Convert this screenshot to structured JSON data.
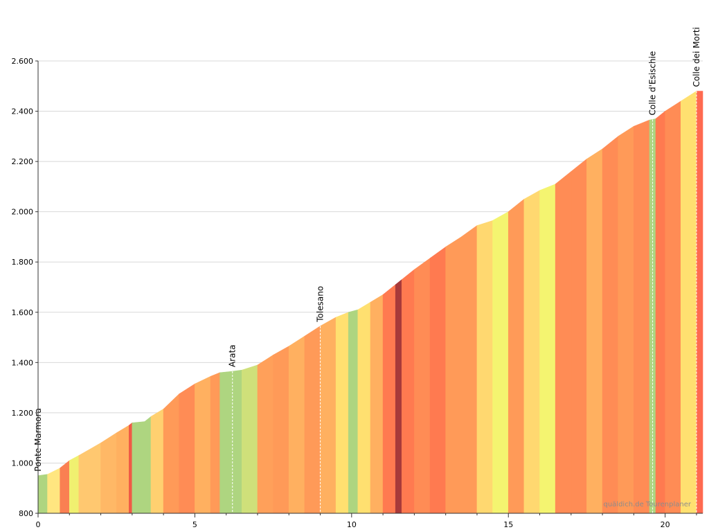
{
  "chart_data": {
    "type": "area",
    "title": "",
    "xlabel": "",
    "ylabel": "",
    "xlim": [
      0,
      21.2
    ],
    "ylim": [
      800,
      2700
    ],
    "x_ticks": [
      {
        "value": 0,
        "label": "0"
      },
      {
        "value": 5,
        "label": "5"
      },
      {
        "value": 10,
        "label": "10"
      },
      {
        "value": 15,
        "label": "15"
      },
      {
        "value": 20,
        "label": "20"
      }
    ],
    "y_ticks": [
      {
        "value": 800,
        "label": "800"
      },
      {
        "value": 1000,
        "label": "1.000"
      },
      {
        "value": 1200,
        "label": "1.200"
      },
      {
        "value": 1400,
        "label": "1.400"
      },
      {
        "value": 1600,
        "label": "1.600"
      },
      {
        "value": 1800,
        "label": "1.800"
      },
      {
        "value": 2000,
        "label": "2.000"
      },
      {
        "value": 2200,
        "label": "2.200"
      },
      {
        "value": 2400,
        "label": "2.400"
      },
      {
        "value": 2600,
        "label": "2.600"
      }
    ],
    "grid": true,
    "distance_km": [
      0,
      0.3,
      0.7,
      1.0,
      1.3,
      2.0,
      2.5,
      2.9,
      3.0,
      3.4,
      3.6,
      4.0,
      4.5,
      5.0,
      5.5,
      5.8,
      6.2,
      6.5,
      7.0,
      7.5,
      8.0,
      8.5,
      9.0,
      9.5,
      9.9,
      10.2,
      10.6,
      11.0,
      11.4,
      11.6,
      12.0,
      12.5,
      13.0,
      13.5,
      14.0,
      14.5,
      15.0,
      15.5,
      16.0,
      16.5,
      17.0,
      17.5,
      18.0,
      18.5,
      19.0,
      19.5,
      19.7,
      20.0,
      20.5,
      21.0
    ],
    "elevation_m": [
      950,
      955,
      980,
      1010,
      1030,
      1080,
      1120,
      1150,
      1160,
      1165,
      1185,
      1215,
      1275,
      1315,
      1345,
      1360,
      1365,
      1370,
      1390,
      1430,
      1465,
      1505,
      1545,
      1580,
      1600,
      1610,
      1640,
      1670,
      1710,
      1730,
      1770,
      1815,
      1860,
      1900,
      1945,
      1965,
      2000,
      2050,
      2085,
      2110,
      2160,
      2210,
      2250,
      2300,
      2340,
      2365,
      2370,
      2400,
      2440,
      2480
    ],
    "segment_colors": [
      "#aed580",
      "#ffe680",
      "#fa8052",
      "#f0f070",
      "#ffc870",
      "#ffb866",
      "#ffb060",
      "#f05a46",
      "#aed580",
      "#aed580",
      "#ffd070",
      "#ff9a58",
      "#ff8c55",
      "#ffb060",
      "#ff9a58",
      "#aed580",
      "#aed580",
      "#cfe07a",
      "#ffa05a",
      "#ff9a58",
      "#ffb060",
      "#ff9a58",
      "#ffb060",
      "#ffe070",
      "#aed580",
      "#ffe070",
      "#ffb060",
      "#ff7a50",
      "#a83a3a",
      "#ff7a50",
      "#ff8c55",
      "#ff7a50",
      "#ff9a58",
      "#ff9a58",
      "#ffd870",
      "#f4f470",
      "#ff9a58",
      "#ffd870",
      "#f4f470",
      "#ff8c55",
      "#ff8c55",
      "#ffb060",
      "#ff8c55",
      "#ff9a58",
      "#ff8c55",
      "#aed580",
      "#ff7a50",
      "#ff8c55",
      "#ffe070",
      "#ff6a50"
    ],
    "points_of_interest": [
      {
        "name": "Ponte Marmora",
        "km": 0,
        "elevation_m": 950
      },
      {
        "name": "Arata",
        "km": 6.2,
        "elevation_m": 1365
      },
      {
        "name": "Tolesano",
        "km": 9.0,
        "elevation_m": 1545
      },
      {
        "name": "Colle d'Esischie",
        "km": 19.6,
        "elevation_m": 2367
      },
      {
        "name": "Colle dei Morti",
        "km": 21.0,
        "elevation_m": 2480
      }
    ],
    "watermark": "quäldich.de Tourenplaner"
  }
}
